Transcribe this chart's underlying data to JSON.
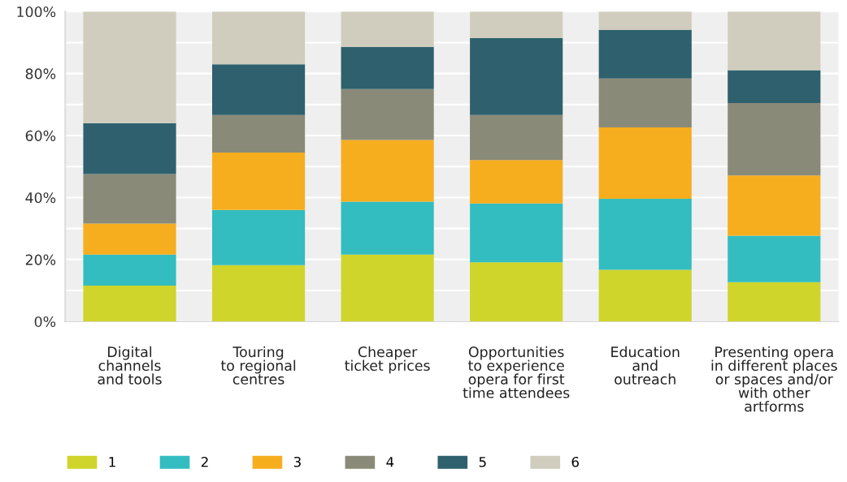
{
  "chart_data": {
    "type": "bar",
    "stacked": true,
    "categories": [
      "Digital\nchannels\nand tools",
      "Touring\nto regional\ncentres",
      "Cheaper\nticket prices",
      "Opportunities\nto experience\nopera for first\ntime attendees",
      "Education\nand\noutreach",
      "Presenting opera\nin different places\nor spaces and/or\nwith other\nartforms"
    ],
    "series": [
      {
        "name": "1",
        "color": "#cfd52a",
        "values": [
          11.6,
          18.2,
          21.6,
          19.1,
          16.7,
          12.7
        ]
      },
      {
        "name": "2",
        "color": "#33bdc0",
        "values": [
          10.0,
          17.8,
          17.1,
          19.0,
          22.9,
          15.0
        ]
      },
      {
        "name": "3",
        "color": "#f6ae1e",
        "values": [
          10.0,
          18.5,
          19.9,
          14.0,
          23.0,
          19.4
        ]
      },
      {
        "name": "4",
        "color": "#8a8a78",
        "values": [
          16.0,
          12.1,
          16.4,
          14.5,
          15.8,
          23.4
        ]
      },
      {
        "name": "5",
        "color": "#2e616d",
        "values": [
          16.4,
          16.4,
          13.6,
          24.9,
          15.7,
          10.6
        ]
      },
      {
        "name": "6",
        "color": "#d0cdbe",
        "values": [
          36.0,
          17.0,
          11.4,
          8.5,
          5.9,
          18.9
        ]
      }
    ],
    "ylim": [
      0,
      100
    ],
    "yticks": [
      {
        "value": 0,
        "label": "0%"
      },
      {
        "value": 10,
        "label": null
      },
      {
        "value": 20,
        "label": "20%"
      },
      {
        "value": 30,
        "label": null
      },
      {
        "value": 40,
        "label": "40%"
      },
      {
        "value": 50,
        "label": null
      },
      {
        "value": 60,
        "label": "60%"
      },
      {
        "value": 70,
        "label": null
      },
      {
        "value": 80,
        "label": "80%"
      },
      {
        "value": 90,
        "label": null
      },
      {
        "value": 100,
        "label": "100%"
      }
    ],
    "grid": "y",
    "legend": "bottom left"
  }
}
